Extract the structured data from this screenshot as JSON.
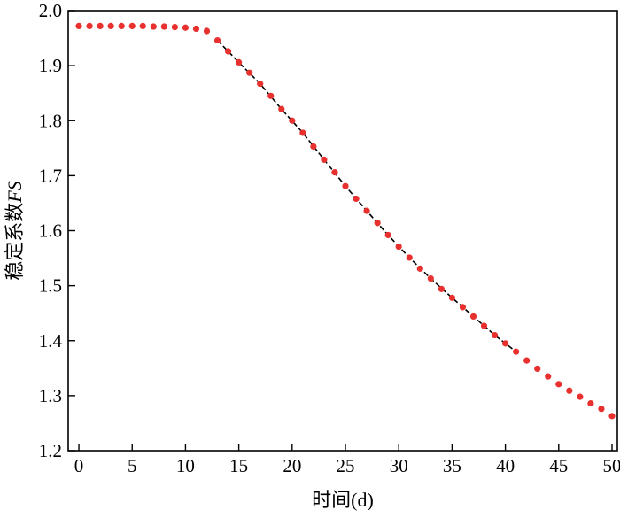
{
  "chart_data": {
    "type": "scatter",
    "title": "",
    "xlabel": "时间(d)",
    "ylabel_main": "稳定系数",
    "ylabel_italic": "FS",
    "xlim": [
      -1,
      50.5
    ],
    "ylim": [
      1.2,
      2.0
    ],
    "xticks": [
      0,
      5,
      10,
      15,
      20,
      25,
      30,
      35,
      40,
      45,
      50
    ],
    "yticks": [
      1.2,
      1.3,
      1.4,
      1.5,
      1.6,
      1.7,
      1.8,
      1.9,
      2.0
    ],
    "ytick_labels": [
      "1.2",
      "1.3",
      "1.4",
      "1.5",
      "1.6",
      "1.7",
      "1.8",
      "1.9",
      "2.0"
    ],
    "grid": false,
    "legend": "none",
    "colors": {
      "points": "#e8312f",
      "fit_line": "#000000"
    },
    "series": [
      {
        "style": "dots",
        "x": [
          0,
          1,
          2,
          3,
          4,
          5,
          6,
          7,
          8,
          9,
          10,
          11,
          12,
          13,
          14,
          15,
          16,
          17,
          18,
          19,
          20,
          21,
          22,
          23,
          24,
          25,
          26,
          27,
          28,
          29,
          30,
          31,
          32,
          33,
          34,
          35,
          36,
          37,
          38,
          39,
          40,
          41,
          42,
          43,
          44,
          45,
          46,
          47,
          48,
          49,
          50
        ],
        "y": [
          1.972,
          1.972,
          1.972,
          1.972,
          1.972,
          1.972,
          1.972,
          1.971,
          1.971,
          1.97,
          1.969,
          1.967,
          1.963,
          1.946,
          1.926,
          1.906,
          1.887,
          1.867,
          1.845,
          1.821,
          1.8,
          1.778,
          1.753,
          1.729,
          1.706,
          1.681,
          1.658,
          1.636,
          1.614,
          1.592,
          1.571,
          1.551,
          1.531,
          1.513,
          1.494,
          1.478,
          1.461,
          1.444,
          1.427,
          1.41,
          1.395,
          1.38,
          1.364,
          1.349,
          1.335,
          1.321,
          1.309,
          1.298,
          1.286,
          1.276,
          1.263
        ]
      },
      {
        "style": "dashed-line",
        "x": [
          13,
          15,
          17,
          19,
          21,
          23,
          25,
          27,
          29,
          31,
          33,
          35,
          37,
          39,
          40,
          41
        ],
        "y": [
          1.946,
          1.906,
          1.867,
          1.821,
          1.778,
          1.729,
          1.681,
          1.636,
          1.592,
          1.551,
          1.513,
          1.478,
          1.444,
          1.41,
          1.395,
          1.38
        ]
      }
    ]
  }
}
